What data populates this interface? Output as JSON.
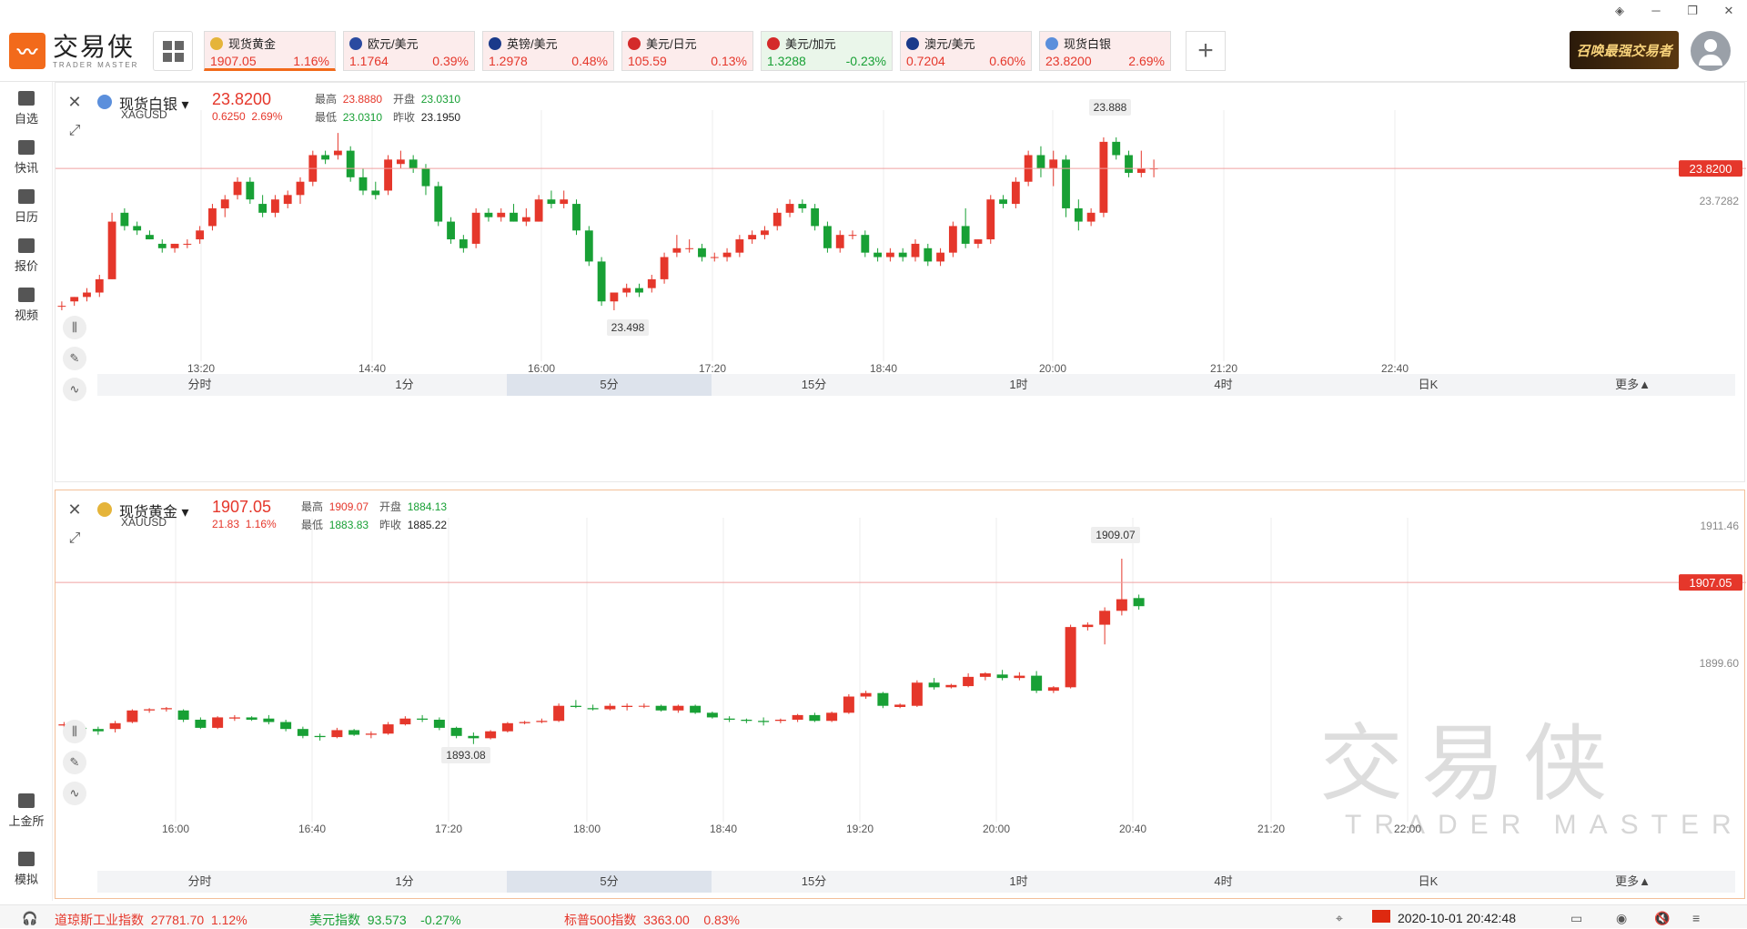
{
  "app": {
    "name_cn": "交易侠",
    "name_en": "TRADER MASTER"
  },
  "quotes": [
    {
      "name": "现货黄金",
      "price": "1907.05",
      "change": "1.16%",
      "trend": "up",
      "active": true,
      "color": "#e5b43a"
    },
    {
      "name": "欧元/美元",
      "price": "1.1764",
      "change": "0.39%",
      "trend": "up",
      "color": "#2b4aa0"
    },
    {
      "name": "英镑/美元",
      "price": "1.2978",
      "change": "0.48%",
      "trend": "up",
      "color": "#1a3a8a"
    },
    {
      "name": "美元/日元",
      "price": "105.59",
      "change": "0.13%",
      "trend": "up",
      "color": "#d42a2a"
    },
    {
      "name": "美元/加元",
      "price": "1.3288",
      "change": "-0.23%",
      "trend": "down",
      "color": "#d42a2a"
    },
    {
      "name": "澳元/美元",
      "price": "0.7204",
      "change": "0.60%",
      "trend": "up",
      "color": "#1a3a8a"
    },
    {
      "name": "现货白银",
      "price": "23.8200",
      "change": "2.69%",
      "trend": "up",
      "color": "#5b8fdc"
    }
  ],
  "promo": "召唤最强交易者",
  "sidebar": [
    "自选",
    "快讯",
    "日历",
    "报价",
    "视频",
    "上金所",
    "模拟"
  ],
  "panel1": {
    "name": "现货白银",
    "code": "XAGUSD",
    "price": "23.8200",
    "chg": "0.6250",
    "pct": "2.69%",
    "high_label": "最高",
    "high": "23.8880",
    "open_label": "开盘",
    "open": "23.0310",
    "low_label": "最低",
    "low": "23.0310",
    "prev_label": "昨收",
    "prev": "23.1950",
    "times": [
      "13:20",
      "14:40",
      "16:00",
      "17:20",
      "18:40",
      "20:00",
      "21:20",
      "22:40"
    ],
    "tag_price": "23.8200",
    "tag_right": "23.7282",
    "max_label": "23.888",
    "min_label": "23.498"
  },
  "panel2": {
    "name": "现货黄金",
    "code": "XAUUSD",
    "price": "1907.05",
    "chg": "21.83",
    "pct": "1.16%",
    "high_label": "最高",
    "high": "1909.07",
    "open_label": "开盘",
    "open": "1884.13",
    "low_label": "最低",
    "low": "1883.83",
    "prev_label": "昨收",
    "prev": "1885.22",
    "times": [
      "16:00",
      "16:40",
      "17:20",
      "18:00",
      "18:40",
      "19:20",
      "20:00",
      "20:40",
      "21:20",
      "22:00"
    ],
    "tag_price": "1907.05",
    "tag_top": "1911.46",
    "tag_mid": "1899.60",
    "max_label": "1909.07",
    "min_label": "1893.08"
  },
  "periods": [
    "分时",
    "1分",
    "5分",
    "15分",
    "1时",
    "4时",
    "日K",
    "更多▲"
  ],
  "bottom": {
    "dow_name": "道琼斯工业指数",
    "dow": "27781.70",
    "dow_pct": "1.12%",
    "usd_name": "美元指数",
    "usd": "93.573",
    "usd_pct": "-0.27%",
    "sp_name": "标普500指数",
    "sp": "3363.00",
    "sp_pct": "0.83%",
    "datetime": "2020-10-01 20:42:48"
  },
  "chart_data": [
    {
      "type": "candlestick",
      "title": "现货白银",
      "series": [
        [
          23.51,
          23.52,
          23.5,
          23.51
        ],
        [
          23.52,
          23.53,
          23.51,
          23.53
        ],
        [
          23.53,
          23.55,
          23.52,
          23.54
        ],
        [
          23.54,
          23.58,
          23.53,
          23.57
        ],
        [
          23.57,
          23.72,
          23.57,
          23.7
        ],
        [
          23.72,
          23.73,
          23.68,
          23.69
        ],
        [
          23.69,
          23.7,
          23.67,
          23.68
        ],
        [
          23.67,
          23.68,
          23.66,
          23.66
        ],
        [
          23.65,
          23.66,
          23.63,
          23.64
        ],
        [
          23.64,
          23.65,
          23.63,
          23.65
        ],
        [
          23.65,
          23.66,
          23.64,
          23.65
        ],
        [
          23.66,
          23.69,
          23.65,
          23.68
        ],
        [
          23.69,
          23.74,
          23.68,
          23.73
        ],
        [
          23.73,
          23.76,
          23.71,
          23.75
        ],
        [
          23.76,
          23.8,
          23.75,
          23.79
        ],
        [
          23.79,
          23.8,
          23.74,
          23.75
        ],
        [
          23.74,
          23.76,
          23.71,
          23.72
        ],
        [
          23.72,
          23.76,
          23.71,
          23.75
        ],
        [
          23.74,
          23.77,
          23.73,
          23.76
        ],
        [
          23.76,
          23.8,
          23.74,
          23.79
        ],
        [
          23.79,
          23.86,
          23.78,
          23.85
        ],
        [
          23.85,
          23.86,
          23.83,
          23.84
        ],
        [
          23.85,
          23.9,
          23.84,
          23.86
        ],
        [
          23.86,
          23.87,
          23.79,
          23.8
        ],
        [
          23.8,
          23.82,
          23.76,
          23.77
        ],
        [
          23.77,
          23.79,
          23.75,
          23.76
        ],
        [
          23.77,
          23.85,
          23.76,
          23.84
        ],
        [
          23.83,
          23.86,
          23.82,
          23.84
        ],
        [
          23.84,
          23.85,
          23.81,
          23.82
        ],
        [
          23.82,
          23.83,
          23.76,
          23.78
        ],
        [
          23.78,
          23.79,
          23.69,
          23.7
        ],
        [
          23.7,
          23.71,
          23.65,
          23.66
        ],
        [
          23.66,
          23.67,
          23.63,
          23.64
        ],
        [
          23.65,
          23.73,
          23.64,
          23.72
        ],
        [
          23.72,
          23.73,
          23.7,
          23.71
        ],
        [
          23.71,
          23.73,
          23.7,
          23.72
        ],
        [
          23.72,
          23.74,
          23.7,
          23.7
        ],
        [
          23.7,
          23.73,
          23.69,
          23.71
        ],
        [
          23.7,
          23.76,
          23.7,
          23.75
        ],
        [
          23.75,
          23.77,
          23.73,
          23.74
        ],
        [
          23.74,
          23.77,
          23.73,
          23.75
        ],
        [
          23.74,
          23.75,
          23.67,
          23.68
        ],
        [
          23.68,
          23.69,
          23.6,
          23.61
        ],
        [
          23.61,
          23.62,
          23.51,
          23.52
        ],
        [
          23.52,
          23.54,
          23.5,
          23.54
        ],
        [
          23.54,
          23.56,
          23.53,
          23.55
        ],
        [
          23.55,
          23.56,
          23.53,
          23.54
        ],
        [
          23.55,
          23.58,
          23.54,
          23.57
        ],
        [
          23.57,
          23.63,
          23.56,
          23.62
        ],
        [
          23.63,
          23.67,
          23.62,
          23.64
        ],
        [
          23.64,
          23.66,
          23.63,
          23.64
        ],
        [
          23.64,
          23.65,
          23.61,
          23.62
        ],
        [
          23.62,
          23.63,
          23.61,
          23.62
        ],
        [
          23.62,
          23.64,
          23.61,
          23.63
        ],
        [
          23.63,
          23.67,
          23.62,
          23.66
        ],
        [
          23.66,
          23.68,
          23.65,
          23.67
        ],
        [
          23.67,
          23.69,
          23.66,
          23.68
        ],
        [
          23.69,
          23.73,
          23.68,
          23.72
        ],
        [
          23.72,
          23.75,
          23.71,
          23.74
        ],
        [
          23.74,
          23.75,
          23.72,
          23.73
        ],
        [
          23.73,
          23.74,
          23.68,
          23.69
        ],
        [
          23.69,
          23.7,
          23.63,
          23.64
        ],
        [
          23.64,
          23.68,
          23.63,
          23.67
        ],
        [
          23.67,
          23.68,
          23.66,
          23.67
        ],
        [
          23.67,
          23.68,
          23.62,
          23.63
        ],
        [
          23.63,
          23.64,
          23.61,
          23.62
        ],
        [
          23.62,
          23.64,
          23.61,
          23.63
        ],
        [
          23.63,
          23.64,
          23.61,
          23.62
        ],
        [
          23.62,
          23.66,
          23.61,
          23.65
        ],
        [
          23.64,
          23.65,
          23.6,
          23.61
        ],
        [
          23.61,
          23.64,
          23.6,
          23.63
        ],
        [
          23.63,
          23.7,
          23.62,
          23.69
        ],
        [
          23.69,
          23.73,
          23.64,
          23.65
        ],
        [
          23.65,
          23.66,
          23.64,
          23.66
        ],
        [
          23.66,
          23.76,
          23.65,
          23.75
        ],
        [
          23.75,
          23.76,
          23.73,
          23.74
        ],
        [
          23.74,
          23.8,
          23.73,
          23.79
        ],
        [
          23.79,
          23.86,
          23.78,
          23.85
        ],
        [
          23.85,
          23.87,
          23.8,
          23.82
        ],
        [
          23.82,
          23.86,
          23.78,
          23.84
        ],
        [
          23.84,
          23.85,
          23.71,
          23.73
        ],
        [
          23.73,
          23.75,
          23.68,
          23.7
        ],
        [
          23.7,
          23.73,
          23.69,
          23.72
        ],
        [
          23.72,
          23.89,
          23.71,
          23.88
        ],
        [
          23.88,
          23.89,
          23.84,
          23.85
        ],
        [
          23.85,
          23.86,
          23.8,
          23.81
        ],
        [
          23.81,
          23.86,
          23.8,
          23.82
        ],
        [
          23.82,
          23.84,
          23.8,
          23.82
        ]
      ]
    },
    {
      "type": "candlestick",
      "title": "现货黄金",
      "series": [
        [
          1894.7,
          1895.0,
          1894.5,
          1894.8
        ],
        [
          1894.5,
          1894.8,
          1894.3,
          1894.4
        ],
        [
          1894.4,
          1894.6,
          1893.9,
          1894.2
        ],
        [
          1894.4,
          1895.1,
          1894.1,
          1894.9
        ],
        [
          1895.0,
          1896.1,
          1894.9,
          1896.0
        ],
        [
          1896.0,
          1896.2,
          1895.8,
          1896.1
        ],
        [
          1896.1,
          1896.3,
          1895.9,
          1896.2
        ],
        [
          1896.0,
          1896.1,
          1895.0,
          1895.2
        ],
        [
          1895.2,
          1895.4,
          1894.4,
          1894.5
        ],
        [
          1894.5,
          1895.5,
          1894.4,
          1895.4
        ],
        [
          1895.3,
          1895.6,
          1895.1,
          1895.4
        ],
        [
          1895.4,
          1895.5,
          1895.1,
          1895.2
        ],
        [
          1895.3,
          1895.6,
          1894.8,
          1895.0
        ],
        [
          1895.0,
          1895.2,
          1894.2,
          1894.4
        ],
        [
          1894.4,
          1894.6,
          1893.6,
          1893.8
        ],
        [
          1893.8,
          1894.0,
          1893.4,
          1893.7
        ],
        [
          1893.7,
          1894.5,
          1893.6,
          1894.3
        ],
        [
          1894.3,
          1894.4,
          1893.8,
          1893.9
        ],
        [
          1893.9,
          1894.2,
          1893.6,
          1894.0
        ],
        [
          1894.0,
          1895.0,
          1893.9,
          1894.8
        ],
        [
          1894.8,
          1895.5,
          1894.7,
          1895.3
        ],
        [
          1895.3,
          1895.6,
          1895.0,
          1895.2
        ],
        [
          1895.2,
          1895.4,
          1894.3,
          1894.5
        ],
        [
          1894.5,
          1894.6,
          1893.6,
          1893.8
        ],
        [
          1893.8,
          1894.1,
          1893.1,
          1893.6
        ],
        [
          1893.6,
          1894.3,
          1893.5,
          1894.2
        ],
        [
          1894.2,
          1895.0,
          1894.1,
          1894.9
        ],
        [
          1894.9,
          1895.1,
          1894.8,
          1895.0
        ],
        [
          1895.0,
          1895.3,
          1894.9,
          1895.1
        ],
        [
          1895.1,
          1896.6,
          1895.0,
          1896.4
        ],
        [
          1896.4,
          1896.9,
          1896.2,
          1896.3
        ],
        [
          1896.2,
          1896.5,
          1896.0,
          1896.1
        ],
        [
          1896.1,
          1896.6,
          1896.0,
          1896.4
        ],
        [
          1896.3,
          1896.6,
          1896.0,
          1896.4
        ],
        [
          1896.4,
          1896.6,
          1896.2,
          1896.4
        ],
        [
          1896.4,
          1896.5,
          1895.9,
          1896.0
        ],
        [
          1896.0,
          1896.5,
          1895.8,
          1896.4
        ],
        [
          1896.4,
          1896.5,
          1895.7,
          1895.8
        ],
        [
          1895.8,
          1895.9,
          1895.3,
          1895.4
        ],
        [
          1895.3,
          1895.5,
          1895.0,
          1895.2
        ],
        [
          1895.2,
          1895.3,
          1894.9,
          1895.1
        ],
        [
          1895.1,
          1895.4,
          1894.7,
          1895.0
        ],
        [
          1895.1,
          1895.3,
          1894.9,
          1895.2
        ],
        [
          1895.2,
          1895.7,
          1895.0,
          1895.6
        ],
        [
          1895.6,
          1895.8,
          1895.0,
          1895.1
        ],
        [
          1895.1,
          1895.9,
          1895.0,
          1895.8
        ],
        [
          1895.8,
          1897.4,
          1895.7,
          1897.2
        ],
        [
          1897.2,
          1897.7,
          1897.0,
          1897.5
        ],
        [
          1897.5,
          1897.6,
          1896.2,
          1896.4
        ],
        [
          1896.3,
          1896.6,
          1896.2,
          1896.5
        ],
        [
          1896.4,
          1898.6,
          1896.3,
          1898.4
        ],
        [
          1898.4,
          1898.8,
          1897.8,
          1898.0
        ],
        [
          1898.0,
          1898.3,
          1897.9,
          1898.2
        ],
        [
          1898.1,
          1899.2,
          1898.0,
          1898.9
        ],
        [
          1898.9,
          1899.3,
          1898.6,
          1899.2
        ],
        [
          1899.1,
          1899.5,
          1898.6,
          1898.8
        ],
        [
          1898.8,
          1899.3,
          1898.6,
          1899.0
        ],
        [
          1899.0,
          1899.4,
          1897.5,
          1897.7
        ],
        [
          1897.7,
          1898.1,
          1897.5,
          1898.0
        ],
        [
          1898.0,
          1903.4,
          1897.9,
          1903.2
        ],
        [
          1903.2,
          1903.6,
          1902.9,
          1903.4
        ],
        [
          1903.4,
          1904.9,
          1901.7,
          1904.6
        ],
        [
          1904.6,
          1909.1,
          1904.2,
          1905.6
        ],
        [
          1905.7,
          1906.0,
          1904.7,
          1905.0
        ]
      ]
    }
  ]
}
